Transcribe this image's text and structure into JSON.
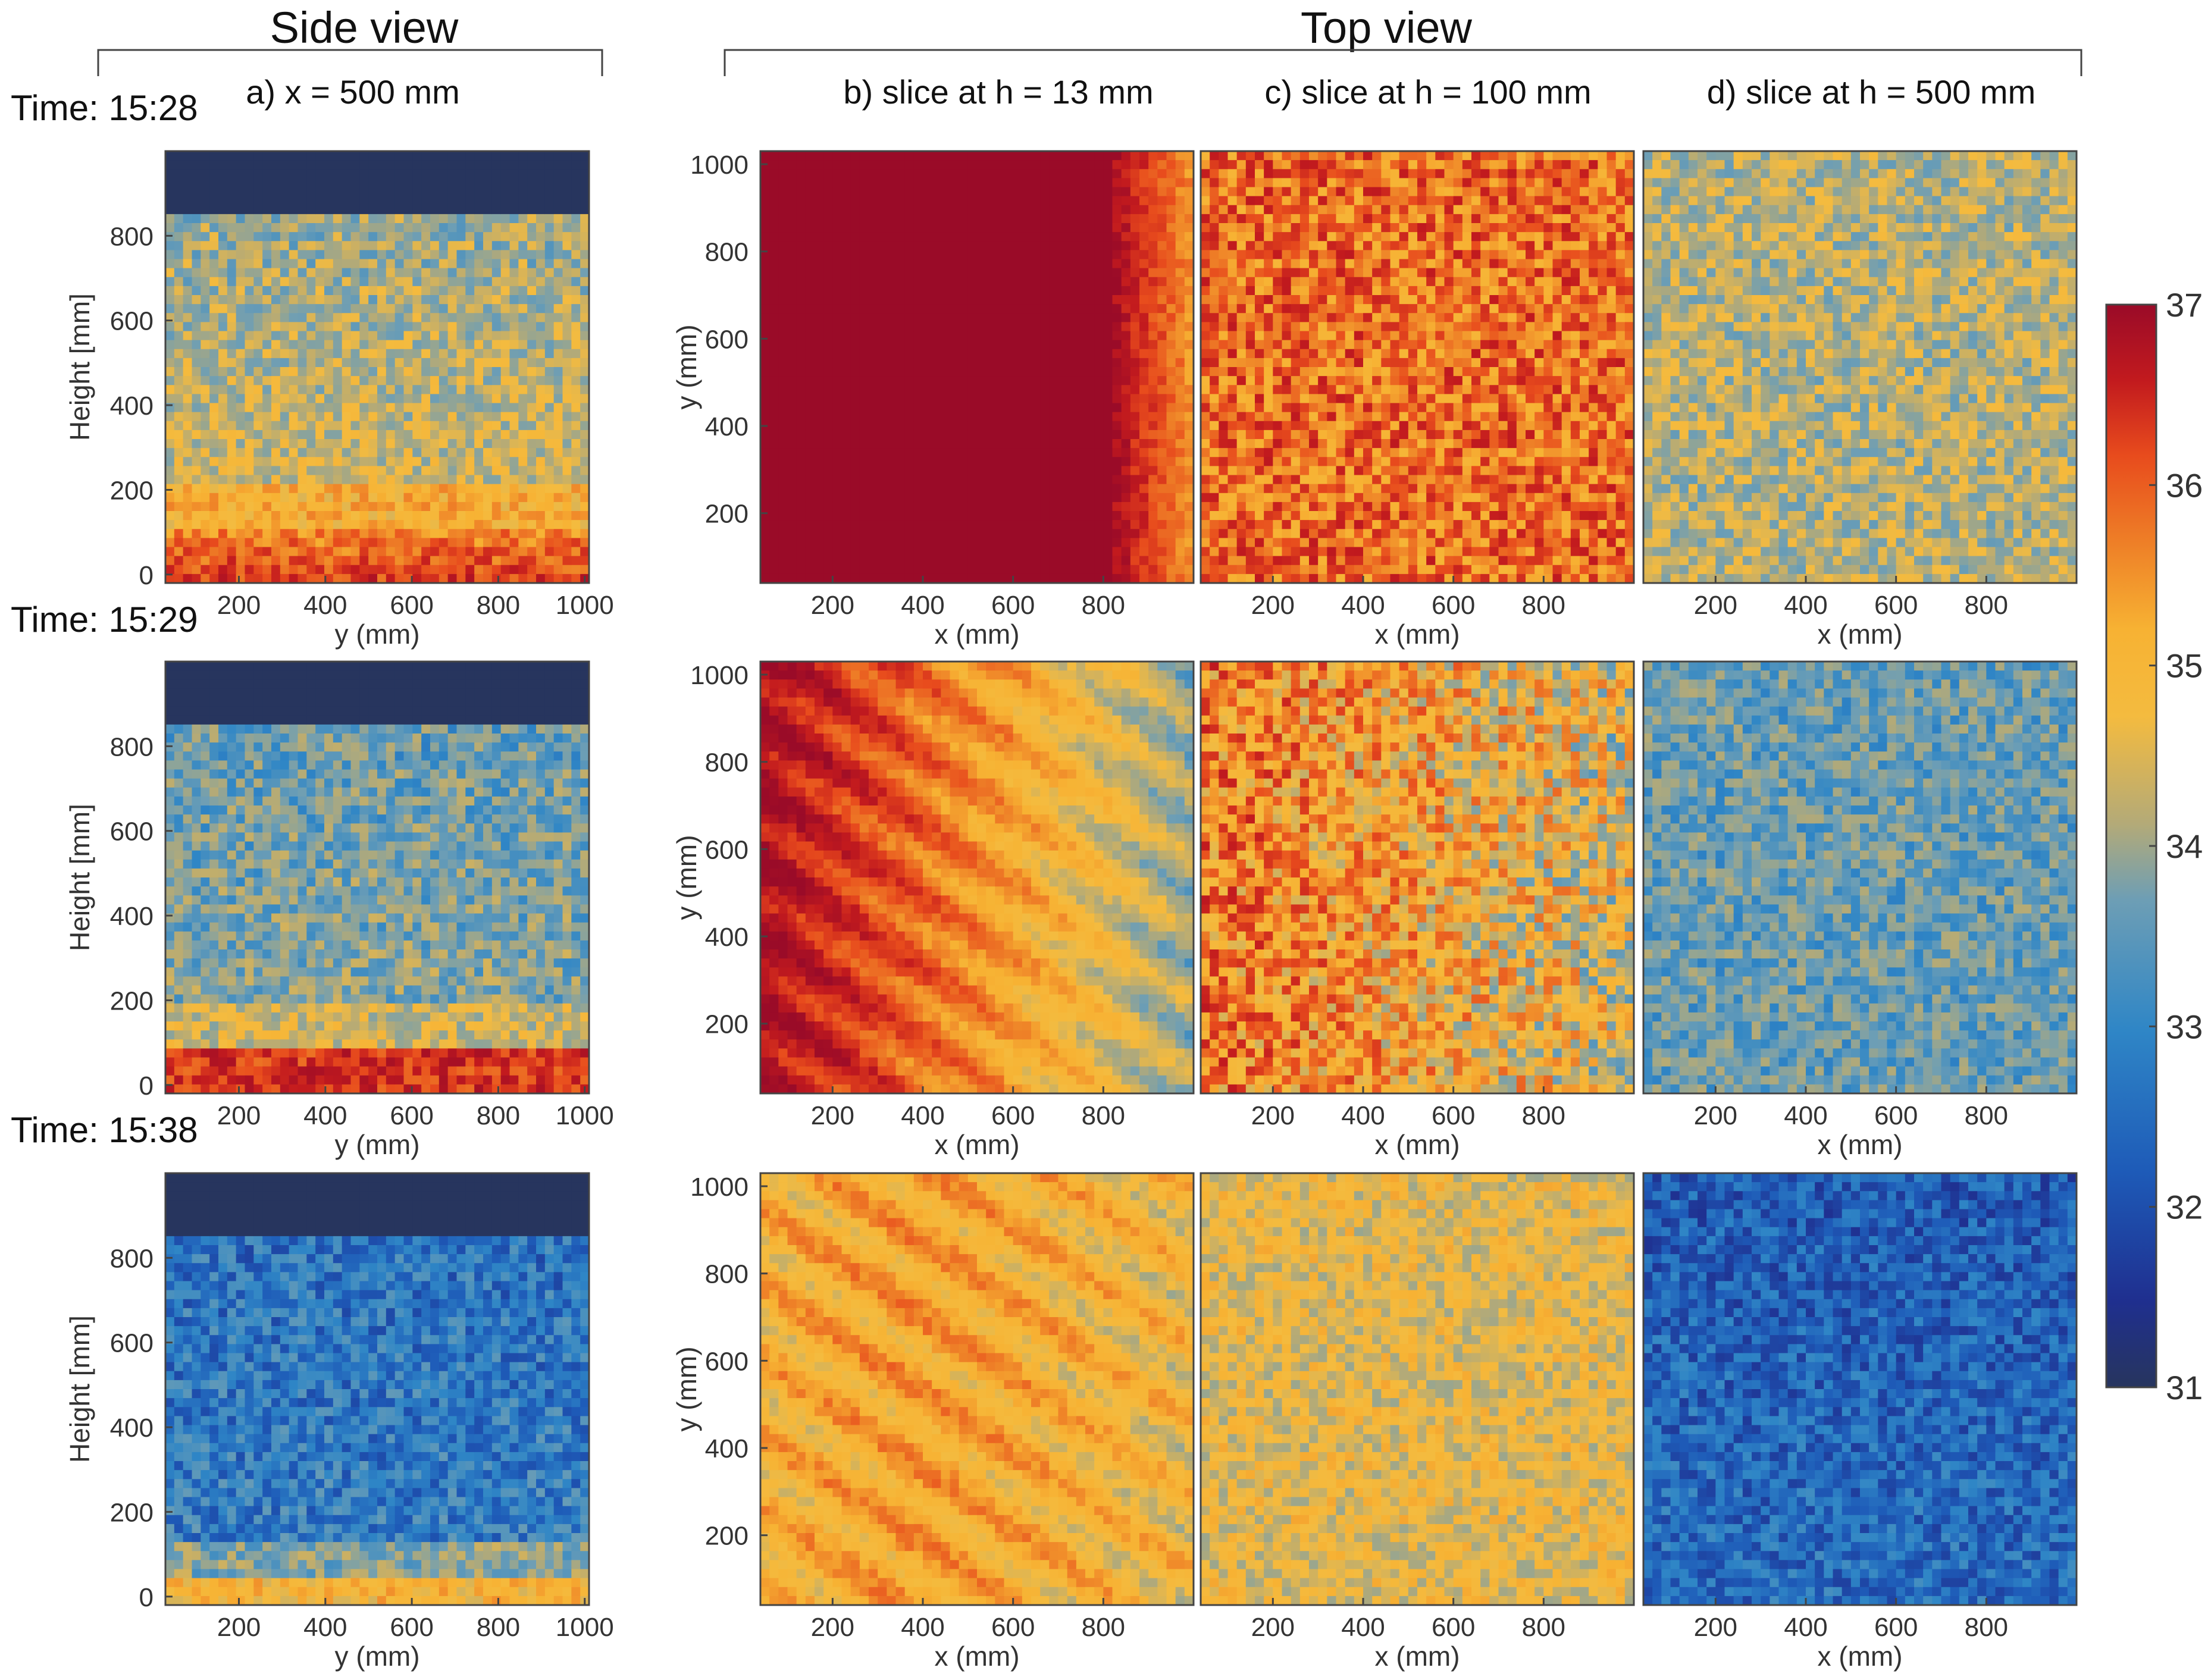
{
  "headers": {
    "side": "Side view",
    "top": "Top view"
  },
  "times": [
    "Time: 15:28",
    "Time: 15:29",
    "Time: 15:38"
  ],
  "colorbar": {
    "min": 31,
    "max": 37,
    "ticks": [
      "31",
      "32",
      "33",
      "34",
      "35",
      "36",
      "37"
    ],
    "colormap": [
      "#27355e",
      "#1f2f8f",
      "#1e5bb8",
      "#2f86c6",
      "#6d9eb5",
      "#b3aa78",
      "#f4bb3f",
      "#f7b233",
      "#ee7f27",
      "#e84c1d",
      "#c21a1e",
      "#9a0b28"
    ]
  },
  "chart_data": [
    {
      "type": "heatmap",
      "panel": "a",
      "title": "a) x = 500 mm",
      "rows": [
        0,
        1,
        2
      ],
      "xlabel": "y (mm)",
      "ylabel": "Height [mm]",
      "xlim": [
        30,
        1010
      ],
      "ylim": [
        -20,
        1000
      ],
      "xticks": [
        "200",
        "400",
        "600",
        "800",
        "1000"
      ],
      "yticks": [
        "0",
        "200",
        "400",
        "600",
        "800"
      ],
      "value_range_by_time": [
        [
          31,
          37
        ],
        [
          31,
          37
        ],
        [
          31,
          35
        ]
      ]
    },
    {
      "type": "heatmap",
      "panel": "b",
      "title": "b) slice at h = 13 mm",
      "rows": [
        0,
        1,
        2
      ],
      "xlabel": "x (mm)",
      "ylabel": "y (mm)",
      "xlim": [
        40,
        1000
      ],
      "ylim": [
        40,
        1030
      ],
      "xticks": [
        "200",
        "400",
        "600",
        "800"
      ],
      "yticks": [
        "200",
        "400",
        "600",
        "800",
        "1000"
      ]
    },
    {
      "type": "heatmap",
      "panel": "c",
      "title": "c) slice at h = 100 mm",
      "rows": [
        0,
        1,
        2
      ],
      "xlabel": "x (mm)",
      "xlim": [
        40,
        1000
      ],
      "xticks": [
        "200",
        "400",
        "600",
        "800"
      ]
    },
    {
      "type": "heatmap",
      "panel": "d",
      "title": "d) slice at h = 500 mm",
      "rows": [
        0,
        1,
        2
      ],
      "xlabel": "x (mm)",
      "xlim": [
        40,
        1000
      ],
      "xticks": [
        "200",
        "400",
        "600",
        "800"
      ]
    }
  ]
}
